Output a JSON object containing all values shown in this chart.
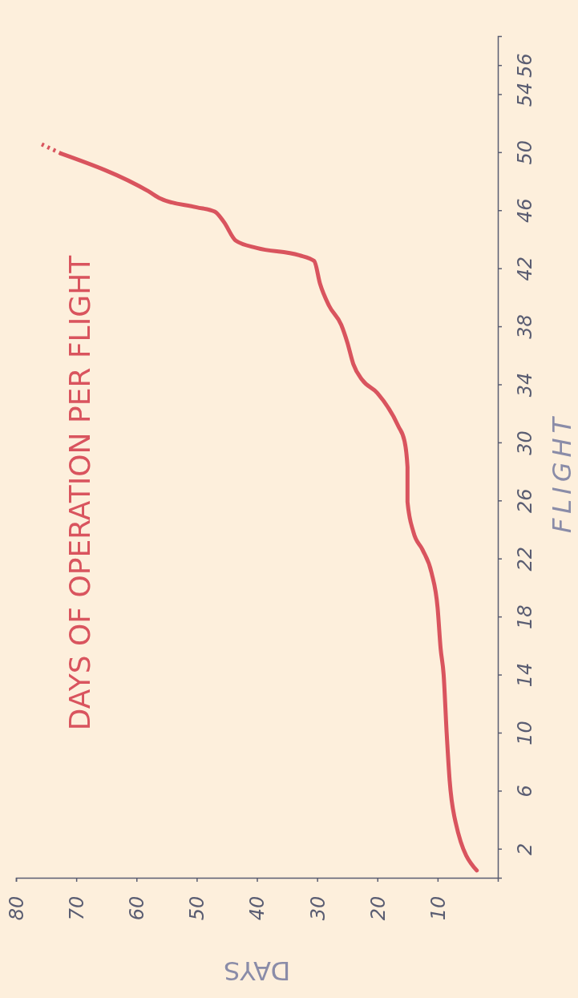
{
  "chart_data": {
    "type": "line",
    "title": "DAYS OF OPERATION PER FLIGHT",
    "xlabel": "DAYS",
    "ylabel": "FLIGHT",
    "xlim": [
      80,
      0
    ],
    "xticks": [
      80,
      70,
      60,
      50,
      40,
      30,
      20,
      10
    ],
    "ylim": [
      0,
      58
    ],
    "yticks": [
      2,
      6,
      10,
      14,
      18,
      22,
      26,
      30,
      34,
      38,
      42,
      46,
      50,
      54,
      56
    ],
    "grid": false,
    "marker": "none",
    "series": [
      {
        "color": "#d9545e",
        "line_style": "solid",
        "x": [
          3.5,
          7,
          8,
          8.5,
          9,
          9.5,
          10,
          11,
          12.5,
          14,
          15,
          15,
          15.5,
          16.5,
          20,
          22.5,
          24,
          25,
          26,
          28,
          29.5,
          30.5,
          33,
          40,
          43.5,
          45.5,
          47,
          50,
          56,
          58,
          72.5
        ],
        "values": [
          0.5,
          3.8,
          6.7,
          10,
          14,
          15.8,
          18.6,
          21,
          22.6,
          23.8,
          25.9,
          28.3,
          30.1,
          31.1,
          33.4,
          34.3,
          35.4,
          36.9,
          38.1,
          39.4,
          40.9,
          42.5,
          42.9,
          43.4,
          43.9,
          45.2,
          45.9,
          46.2,
          46.8,
          47.3,
          49.9
        ]
      },
      {
        "color": "#d9545e",
        "line_style": "dotted",
        "x": [
          72.5,
          76
        ],
        "values": [
          49.9,
          50.6
        ]
      }
    ]
  }
}
